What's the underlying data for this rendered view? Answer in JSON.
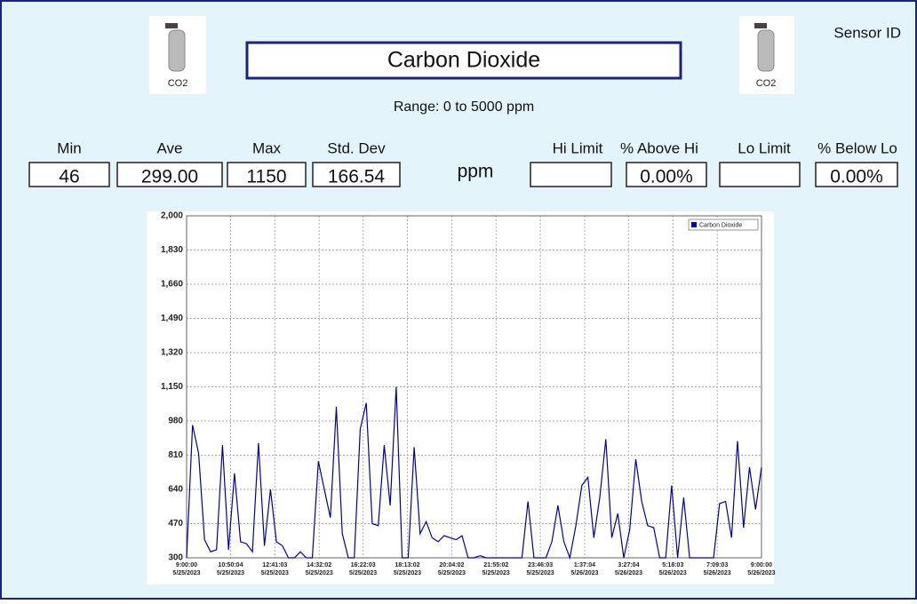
{
  "header": {
    "sensor_label": "Sensor ID",
    "title": "Carbon Dioxide",
    "range": "Range: 0 to 5000 ppm",
    "icon_label": "CO2",
    "stats": [
      {
        "label": "Min",
        "value": "46"
      },
      {
        "label": "Ave",
        "value": "299.00"
      },
      {
        "label": "Max",
        "value": "1150"
      },
      {
        "label": "Std. Dev",
        "value": "166.54"
      }
    ],
    "unit": "ppm",
    "limits": [
      {
        "label": "Hi Limit"
      },
      {
        "label": "% Above Hi",
        "value": "0.00%"
      },
      {
        "label": "Lo Limit"
      },
      {
        "label": "% Below Lo",
        "value": "0.00%"
      }
    ]
  },
  "chart_data": {
    "type": "line",
    "legend": "top-right",
    "grid": true,
    "xlim": [
      "2023-05-25T09:00",
      "2023-05-26T09:00"
    ],
    "xticks": [
      {
        "value": "2023-05-25T09:00:00",
        "label": "9:00:00\n5/25/2023"
      },
      {
        "value": "2023-05-25T10:50:04",
        "label": "10:50:04\n5/25/2023"
      },
      {
        "value": "2023-05-25T12:41:03",
        "label": "12:41:03\n5/25/2023"
      },
      {
        "value": "2023-05-25T14:32:02",
        "label": "14:32:02\n5/25/2023"
      },
      {
        "value": "2023-05-25T16:22:03",
        "label": "16:22:03\n5/25/2023"
      },
      {
        "value": "2023-05-25T18:13:02",
        "label": "18:13:02\n5/25/2023"
      },
      {
        "value": "2023-05-25T20:04:02",
        "label": "20:04:02\n5/25/2023"
      },
      {
        "value": "2023-05-25T21:55:02",
        "label": "21:55:02\n5/25/2023"
      },
      {
        "value": "2023-05-25T23:46:03",
        "label": "23:46:03\n5/25/2023"
      },
      {
        "value": "2023-05-26T01:37:04",
        "label": "1:37:04\n5/26/2023"
      },
      {
        "value": "2023-05-26T03:27:04",
        "label": "3:27:04\n5/26/2023"
      },
      {
        "value": "2023-05-26T05:18:03",
        "label": "5:18:03\n5/26/2023"
      },
      {
        "value": "2023-05-26T07:09:03",
        "label": "7:09:03\n5/26/2023"
      },
      {
        "value": "2023-05-26T09:00:00",
        "label": "9:00:00\n5/26/2023"
      }
    ],
    "ylim": [
      300,
      2000
    ],
    "yticks": [
      300,
      470,
      640,
      810,
      980,
      {
        "value": 1150,
        "label": "1,150"
      },
      {
        "value": 1320,
        "label": "1,320"
      },
      {
        "value": 1490,
        "label": "1,490"
      },
      {
        "value": 1660,
        "label": "1,660"
      },
      {
        "value": 1830,
        "label": "1,830"
      },
      {
        "value": 2000,
        "label": "2,000"
      }
    ],
    "x": [
      "2023-05-25T09:00",
      "2023-05-25T09:15",
      "2023-05-25T09:30",
      "2023-05-25T09:45",
      "2023-05-25T10:00",
      "2023-05-25T10:15",
      "2023-05-25T10:30",
      "2023-05-25T10:45",
      "2023-05-25T11:00",
      "2023-05-25T11:15",
      "2023-05-25T11:30",
      "2023-05-25T11:45",
      "2023-05-25T12:00",
      "2023-05-25T12:15",
      "2023-05-25T12:30",
      "2023-05-25T12:45",
      "2023-05-25T13:00",
      "2023-05-25T13:15",
      "2023-05-25T13:30",
      "2023-05-25T13:45",
      "2023-05-25T14:00",
      "2023-05-25T14:15",
      "2023-05-25T14:30",
      "2023-05-25T14:45",
      "2023-05-25T15:00",
      "2023-05-25T15:15",
      "2023-05-25T15:30",
      "2023-05-25T15:45",
      "2023-05-25T16:00",
      "2023-05-25T16:15",
      "2023-05-25T16:30",
      "2023-05-25T16:45",
      "2023-05-25T17:00",
      "2023-05-25T17:15",
      "2023-05-25T17:30",
      "2023-05-25T17:45",
      "2023-05-25T18:00",
      "2023-05-25T18:15",
      "2023-05-25T18:30",
      "2023-05-25T18:45",
      "2023-05-25T19:00",
      "2023-05-25T19:15",
      "2023-05-25T19:30",
      "2023-05-25T19:45",
      "2023-05-25T20:00",
      "2023-05-25T20:15",
      "2023-05-25T20:30",
      "2023-05-25T20:45",
      "2023-05-25T21:00",
      "2023-05-25T21:15",
      "2023-05-25T21:30",
      "2023-05-25T21:45",
      "2023-05-25T22:00",
      "2023-05-25T22:15",
      "2023-05-25T22:30",
      "2023-05-25T22:45",
      "2023-05-25T23:00",
      "2023-05-25T23:15",
      "2023-05-25T23:30",
      "2023-05-25T23:45",
      "2023-05-26T00:00",
      "2023-05-26T00:15",
      "2023-05-26T00:30",
      "2023-05-26T00:45",
      "2023-05-26T01:00",
      "2023-05-26T01:15",
      "2023-05-26T01:30",
      "2023-05-26T01:45",
      "2023-05-26T02:00",
      "2023-05-26T02:15",
      "2023-05-26T02:30",
      "2023-05-26T02:45",
      "2023-05-26T03:00",
      "2023-05-26T03:15",
      "2023-05-26T03:30",
      "2023-05-26T03:45",
      "2023-05-26T04:00",
      "2023-05-26T04:15",
      "2023-05-26T04:30",
      "2023-05-26T04:45",
      "2023-05-26T05:00",
      "2023-05-26T05:15",
      "2023-05-26T05:30",
      "2023-05-26T05:45",
      "2023-05-26T06:00",
      "2023-05-26T06:15",
      "2023-05-26T06:30",
      "2023-05-26T06:45",
      "2023-05-26T07:00",
      "2023-05-26T07:15",
      "2023-05-26T07:30",
      "2023-05-26T07:45",
      "2023-05-26T08:00",
      "2023-05-26T08:15",
      "2023-05-26T08:30",
      "2023-05-26T08:45",
      "2023-05-26T09:00"
    ],
    "series": [
      {
        "name": "Carbon Dioxide",
        "color": "#0000aa",
        "values": [
          300,
          960,
          820,
          390,
          330,
          340,
          860,
          340,
          720,
          380,
          370,
          330,
          870,
          360,
          640,
          380,
          360,
          300,
          300,
          330,
          300,
          300,
          780,
          640,
          500,
          1050,
          420,
          300,
          300,
          940,
          1070,
          470,
          460,
          860,
          560,
          1150,
          300,
          300,
          850,
          420,
          480,
          400,
          380,
          410,
          400,
          390,
          410,
          300,
          300,
          310,
          300,
          300,
          300,
          300,
          300,
          300,
          300,
          580,
          300,
          300,
          300,
          380,
          560,
          380,
          300,
          460,
          660,
          700,
          400,
          600,
          890,
          400,
          520,
          300,
          440,
          790,
          580,
          460,
          450,
          300,
          300,
          660,
          300,
          600,
          300,
          300,
          300,
          300,
          300,
          570,
          580,
          400,
          880,
          450,
          750,
          540,
          750
        ]
      }
    ]
  }
}
